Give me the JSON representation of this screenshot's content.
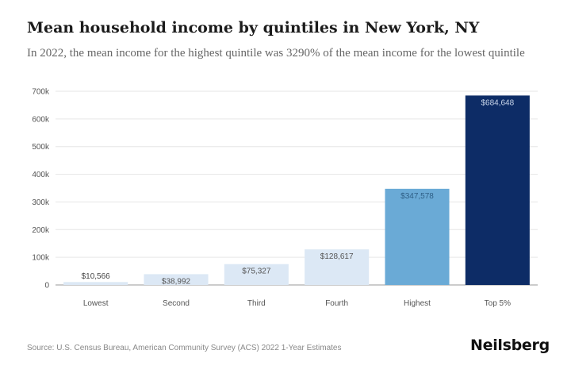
{
  "title": "Mean household income by quintiles in New York, NY",
  "subtitle": "In 2022, the mean income for the highest quintile was 3290% of the mean income for the lowest quintile",
  "source": "Source: U.S. Census Bureau, American Community Survey (ACS) 2022 1-Year Estimates",
  "brand": "Neilsberg",
  "colors": {
    "bars": [
      "#dce8f5",
      "#dce8f5",
      "#dce8f5",
      "#dce8f5",
      "#6aaad6",
      "#0d2c66"
    ],
    "grid": "#e6e6e6",
    "axis": "#999999"
  },
  "chart_data": {
    "type": "bar",
    "categories": [
      "Lowest",
      "Second",
      "Third",
      "Fourth",
      "Highest",
      "Top 5%"
    ],
    "values": [
      10566,
      38992,
      75327,
      128617,
      347578,
      684648
    ],
    "value_labels": [
      "$10,566",
      "$38,992",
      "$75,327",
      "$128,617",
      "$347,578",
      "$684,648"
    ],
    "ylim": [
      0,
      700000
    ],
    "yticks": [
      0,
      100000,
      200000,
      300000,
      400000,
      500000,
      600000,
      700000
    ],
    "ytick_labels": [
      "0",
      "100k",
      "200k",
      "300k",
      "400k",
      "500k",
      "600k",
      "700k"
    ],
    "grid": true,
    "xlabel": "",
    "ylabel": ""
  }
}
